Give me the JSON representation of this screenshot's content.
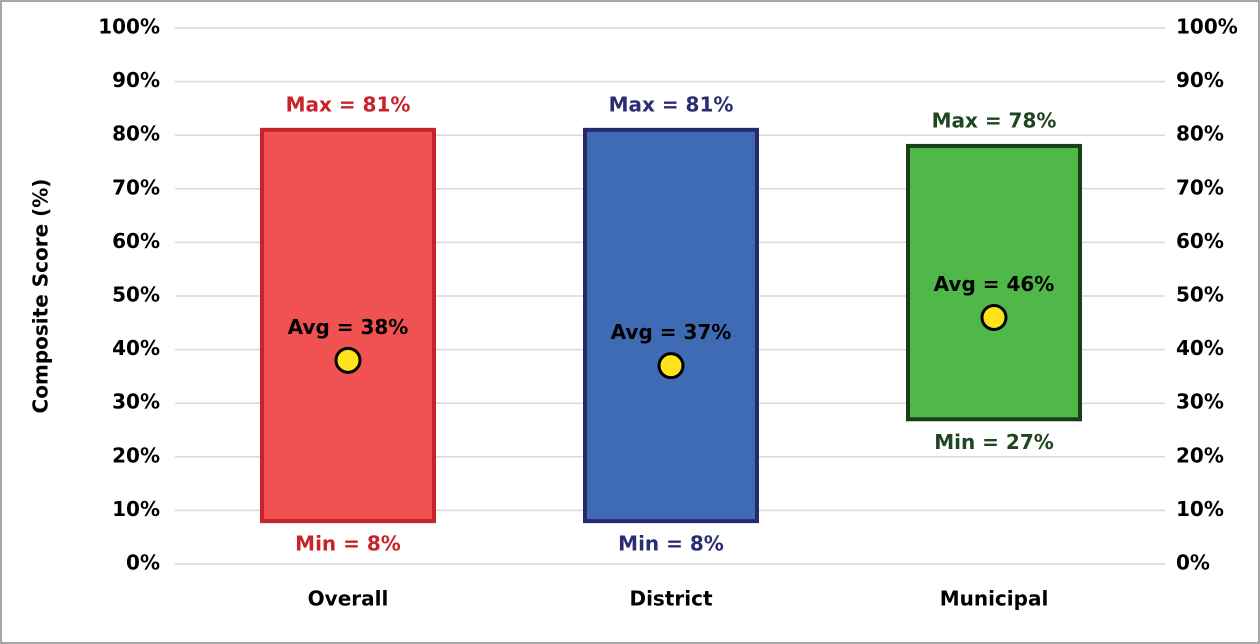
{
  "chart_data": {
    "type": "range",
    "y_axis_label": "Composite Score (%)",
    "categories": [
      "Overall",
      "District",
      "Municipal"
    ],
    "min": [
      8,
      8,
      27
    ],
    "max": [
      81,
      81,
      78
    ],
    "avg": [
      38,
      37,
      46
    ],
    "min_labels": [
      "Min = 8%",
      "Min = 8%",
      "Min = 27%"
    ],
    "max_labels": [
      "Max = 81%",
      "Max = 81%",
      "Max = 78%"
    ],
    "avg_labels": [
      "Avg = 38%",
      "Avg = 37%",
      "Avg = 46%"
    ],
    "colors": [
      "#f05252",
      "#3f6ab4",
      "#50b848"
    ],
    "edge_colors": [
      "#c8222b",
      "#262a6b",
      "#1a3d1a"
    ],
    "label_colors": [
      "#c8222b",
      "#2b2d72",
      "#1e4620"
    ],
    "avg_color": "#ffe21a",
    "ylim": [
      0,
      100
    ],
    "yticks": [
      {
        "value": 0,
        "label": "0%"
      },
      {
        "value": 10,
        "label": "10%"
      },
      {
        "value": 20,
        "label": "20%"
      },
      {
        "value": 30,
        "label": "30%"
      },
      {
        "value": 40,
        "label": "40%"
      },
      {
        "value": 50,
        "label": "50%"
      },
      {
        "value": 60,
        "label": "60%"
      },
      {
        "value": 70,
        "label": "70%"
      },
      {
        "value": 80,
        "label": "80%"
      },
      {
        "value": 90,
        "label": "90%"
      },
      {
        "value": 100,
        "label": "100%"
      }
    ],
    "grid": true
  }
}
